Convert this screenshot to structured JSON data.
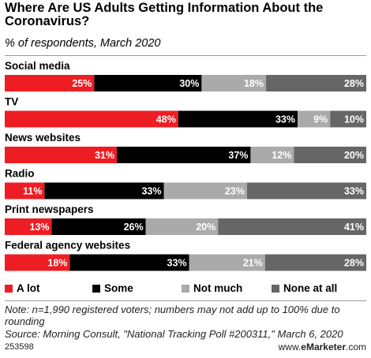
{
  "title": "Where Are US Adults Getting Information About the Coronavirus?",
  "subtitle": "% of respondents, March 2020",
  "colors": {
    "a_lot": "#ee1d23",
    "some": "#000000",
    "not_much": "#aaaaaa",
    "none_at_all": "#666666"
  },
  "legend": [
    {
      "label": "A lot",
      "color": "#ee1d23"
    },
    {
      "label": "Some",
      "color": "#000000"
    },
    {
      "label": "Not much",
      "color": "#aaaaaa"
    },
    {
      "label": "None at all",
      "color": "#666666"
    }
  ],
  "chart_data": {
    "type": "bar",
    "orientation": "horizontal",
    "stacked": true,
    "unit": "%",
    "categories": [
      "Social media",
      "TV",
      "News websites",
      "Radio",
      "Print newspapers",
      "Federal agency websites"
    ],
    "series": [
      {
        "name": "A lot",
        "color": "#ee1d23",
        "values": [
          25,
          48,
          31,
          11,
          13,
          18
        ]
      },
      {
        "name": "Some",
        "color": "#000000",
        "values": [
          30,
          33,
          37,
          33,
          26,
          33
        ]
      },
      {
        "name": "Not much",
        "color": "#aaaaaa",
        "values": [
          18,
          9,
          12,
          23,
          20,
          21
        ]
      },
      {
        "name": "None at all",
        "color": "#666666",
        "values": [
          28,
          10,
          20,
          33,
          41,
          28
        ]
      }
    ],
    "legend_position": "bottom",
    "grid": false
  },
  "note": "Note: n=1,990 registered voters; numbers may not add up to 100% due to rounding",
  "source": "Source: Morning Consult, \"National Tracking Poll #200311,\" March 6, 2020",
  "chart_id": "253598",
  "brand_prefix": "www.",
  "brand_name": "eMarketer",
  "brand_suffix": ".com"
}
